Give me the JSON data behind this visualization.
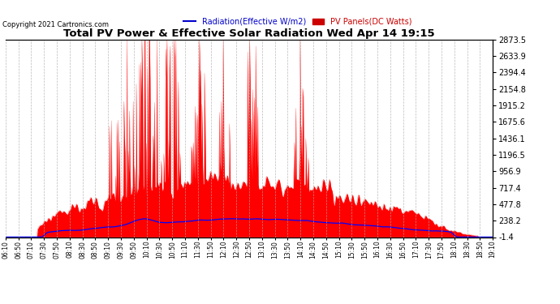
{
  "title": "Total PV Power & Effective Solar Radiation Wed Apr 14 19:15",
  "copyright": "Copyright 2021 Cartronics.com",
  "legend_radiation": "Radiation(Effective W/m2)",
  "legend_pv": "PV Panels(DC Watts)",
  "ylabel_right_values": [
    2873.5,
    2633.9,
    2394.4,
    2154.8,
    1915.2,
    1675.6,
    1436.1,
    1196.5,
    956.9,
    717.4,
    477.8,
    238.2,
    -1.4
  ],
  "ymin": -1.4,
  "ymax": 2873.5,
  "x_tick_labels": [
    "06:10",
    "06:50",
    "07:10",
    "07:30",
    "07:50",
    "08:10",
    "08:30",
    "08:50",
    "09:10",
    "09:30",
    "09:50",
    "10:10",
    "10:30",
    "10:50",
    "11:10",
    "11:30",
    "11:50",
    "12:10",
    "12:30",
    "12:50",
    "13:10",
    "13:30",
    "13:50",
    "14:10",
    "14:30",
    "14:50",
    "15:10",
    "15:30",
    "15:50",
    "16:10",
    "16:30",
    "16:50",
    "17:10",
    "17:30",
    "17:50",
    "18:10",
    "18:30",
    "18:50",
    "19:10"
  ],
  "background_color": "#ffffff",
  "plot_background": "#ffffff",
  "grid_color": "#aaaaaa",
  "fill_color": "#ff0000",
  "line_color_radiation": "#0000ff",
  "title_color": "#000000",
  "copyright_color": "#000000",
  "radiation_color": "#0000cc",
  "pv_color": "#cc0000"
}
